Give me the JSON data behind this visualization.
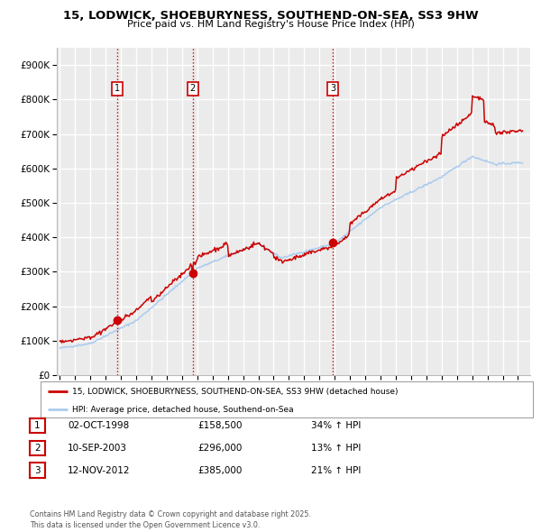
{
  "title": "15, LODWICK, SHOEBURYNESS, SOUTHEND-ON-SEA, SS3 9HW",
  "subtitle": "Price paid vs. HM Land Registry's House Price Index (HPI)",
  "ylabel_ticks": [
    "£0",
    "£100K",
    "£200K",
    "£300K",
    "£400K",
    "£500K",
    "£600K",
    "£700K",
    "£800K",
    "£900K"
  ],
  "ytick_values": [
    0,
    100000,
    200000,
    300000,
    400000,
    500000,
    600000,
    700000,
    800000,
    900000
  ],
  "ylim": [
    0,
    950000
  ],
  "xlim_start": 1994.8,
  "xlim_end": 2025.8,
  "sale_dates": [
    1998.75,
    2003.7,
    2012.87
  ],
  "sale_prices": [
    158500,
    296000,
    385000
  ],
  "sale_labels": [
    "1",
    "2",
    "3"
  ],
  "vline_color": "#cc0000",
  "legend_label_red": "15, LODWICK, SHOEBURYNESS, SOUTHEND-ON-SEA, SS3 9HW (detached house)",
  "legend_label_blue": "HPI: Average price, detached house, Southend-on-Sea",
  "table_rows": [
    [
      "1",
      "02-OCT-1998",
      "£158,500",
      "34% ↑ HPI"
    ],
    [
      "2",
      "10-SEP-2003",
      "£296,000",
      "13% ↑ HPI"
    ],
    [
      "3",
      "12-NOV-2012",
      "£385,000",
      "21% ↑ HPI"
    ]
  ],
  "footnote": "Contains HM Land Registry data © Crown copyright and database right 2025.\nThis data is licensed under the Open Government Licence v3.0.",
  "background_color": "#ffffff",
  "plot_bg_color": "#ebebeb",
  "grid_color": "#ffffff",
  "red_line_color": "#cc0000",
  "blue_line_color": "#aaccee"
}
